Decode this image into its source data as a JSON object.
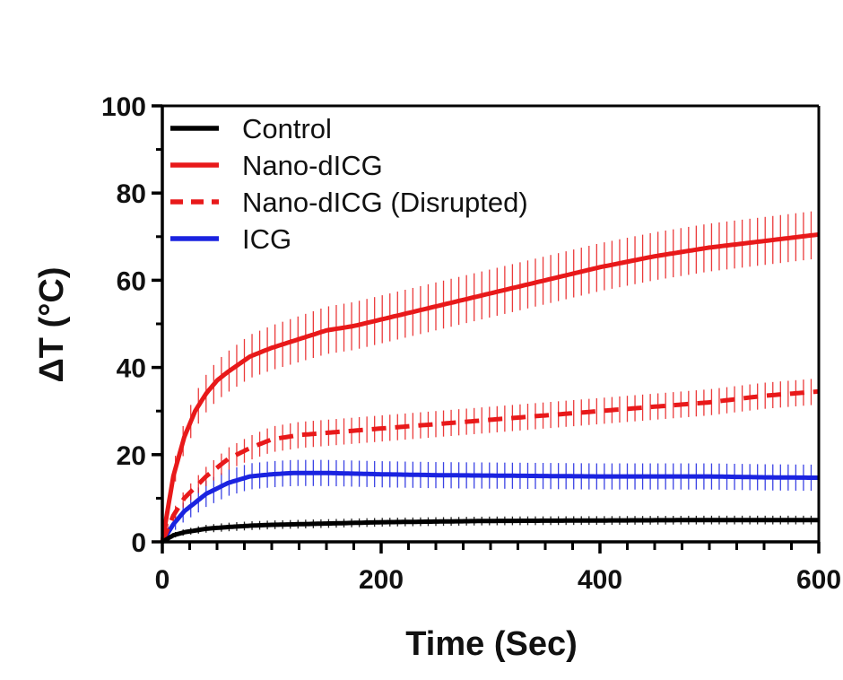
{
  "chart_data": {
    "type": "line",
    "title": "",
    "xlabel": "Time (Sec)",
    "ylabel": "ΔT (°C)",
    "xlim": [
      0,
      600
    ],
    "ylim": [
      0,
      100
    ],
    "xticks": [
      0,
      200,
      400,
      600
    ],
    "yticks": [
      0,
      20,
      40,
      60,
      80,
      100
    ],
    "grid": false,
    "legend_position": "top-left",
    "series": [
      {
        "name": "Control",
        "color": "#000000",
        "style": "solid",
        "x": [
          0,
          10,
          20,
          40,
          60,
          80,
          100,
          150,
          200,
          300,
          400,
          500,
          600
        ],
        "y": [
          0,
          1.5,
          2.2,
          3.0,
          3.4,
          3.7,
          3.9,
          4.2,
          4.5,
          4.8,
          4.9,
          5.0,
          5.0
        ],
        "error": 1.0
      },
      {
        "name": "Nano-dICG",
        "color": "#e8191a",
        "style": "solid",
        "x": [
          0,
          10,
          20,
          30,
          40,
          50,
          60,
          80,
          100,
          125,
          150,
          175,
          200,
          250,
          300,
          350,
          400,
          450,
          500,
          550,
          600
        ],
        "y": [
          0,
          15,
          24,
          30,
          34,
          37,
          39,
          42.5,
          44.5,
          46.5,
          48.5,
          49.5,
          51,
          54,
          57,
          60,
          63,
          65.5,
          67.5,
          69,
          70.5
        ],
        "error": 5.5
      },
      {
        "name": "Nano-dICG (Disrupted)",
        "color": "#e8191a",
        "style": "dashed",
        "x": [
          0,
          10,
          20,
          40,
          60,
          80,
          100,
          125,
          150,
          200,
          250,
          300,
          350,
          400,
          450,
          500,
          550,
          600
        ],
        "y": [
          0,
          6,
          10,
          15,
          19,
          21.5,
          23.5,
          24.5,
          25,
          26,
          27,
          28,
          29,
          30,
          31,
          32,
          33.5,
          34.5
        ],
        "error": 3.0
      },
      {
        "name": "ICG",
        "color": "#1a23e0",
        "style": "solid",
        "x": [
          0,
          10,
          20,
          40,
          60,
          80,
          100,
          120,
          150,
          200,
          250,
          300,
          350,
          400,
          450,
          500,
          550,
          600
        ],
        "y": [
          0,
          4,
          7,
          11,
          13.5,
          15,
          15.5,
          15.8,
          15.8,
          15.5,
          15.3,
          15.2,
          15.1,
          15.0,
          15.0,
          15.0,
          14.8,
          14.7
        ],
        "error": 3.0
      }
    ]
  }
}
